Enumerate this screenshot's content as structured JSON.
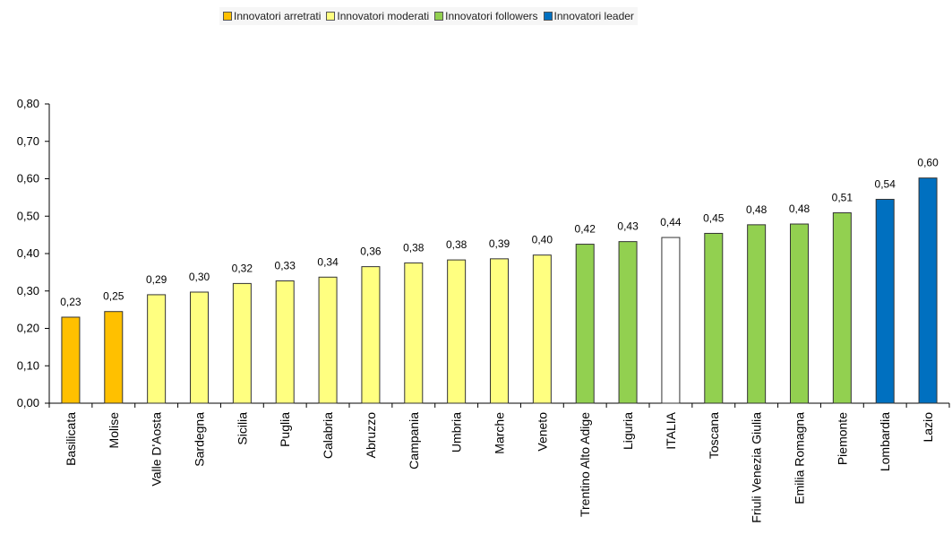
{
  "chart_data": {
    "type": "bar",
    "legend": [
      {
        "label": "Innovatori arretrati",
        "color": "#ffc000"
      },
      {
        "label": "Innovatori moderati",
        "color": "#ffff80"
      },
      {
        "label": "Innovatori followers",
        "color": "#92d050"
      },
      {
        "label": "Innovatori leader",
        "color": "#0070c0"
      }
    ],
    "legend_placement": "top",
    "categories": [
      "Basilicata",
      "Molise",
      "Valle D'Aosta",
      "Sardegna",
      "Sicilia",
      "Puglia",
      "Calabria",
      "Abruzzo",
      "Campania",
      "Umbria",
      "Marche",
      "Veneto",
      "Trentino Alto Adige",
      "Liguria",
      "ITALIA",
      "Toscana",
      "Friuli Venezia Giulia",
      "Emilia Romagna",
      "Piemonte",
      "Lombardia",
      "Lazio"
    ],
    "values": [
      0.23,
      0.245,
      0.29,
      0.297,
      0.32,
      0.327,
      0.337,
      0.365,
      0.375,
      0.383,
      0.386,
      0.396,
      0.425,
      0.432,
      0.443,
      0.454,
      0.477,
      0.479,
      0.509,
      0.545,
      0.602
    ],
    "data_labels": [
      "0,23",
      "0,25",
      "0,29",
      "0,30",
      "0,32",
      "0,33",
      "0,34",
      "0,36",
      "0,38",
      "0,38",
      "0,39",
      "0,40",
      "0,42",
      "0,43",
      "0,44",
      "0,45",
      "0,48",
      "0,48",
      "0,51",
      "0,54",
      "0,60"
    ],
    "colors": [
      "#ffc000",
      "#ffc000",
      "#ffff80",
      "#ffff80",
      "#ffff80",
      "#ffff80",
      "#ffff80",
      "#ffff80",
      "#ffff80",
      "#ffff80",
      "#ffff80",
      "#ffff80",
      "#92d050",
      "#92d050",
      "#ffffff",
      "#92d050",
      "#92d050",
      "#92d050",
      "#92d050",
      "#0070c0",
      "#0070c0"
    ],
    "ylim": [
      0,
      0.8
    ],
    "yticks": [
      0,
      0.1,
      0.2,
      0.3,
      0.4,
      0.5,
      0.6,
      0.7,
      0.8
    ],
    "ytick_labels": [
      "0,00",
      "0,10",
      "0,20",
      "0,30",
      "0,40",
      "0,50",
      "0,60",
      "0,70",
      "0,80"
    ],
    "title": "",
    "xlabel": "",
    "ylabel": "",
    "grid": false
  }
}
